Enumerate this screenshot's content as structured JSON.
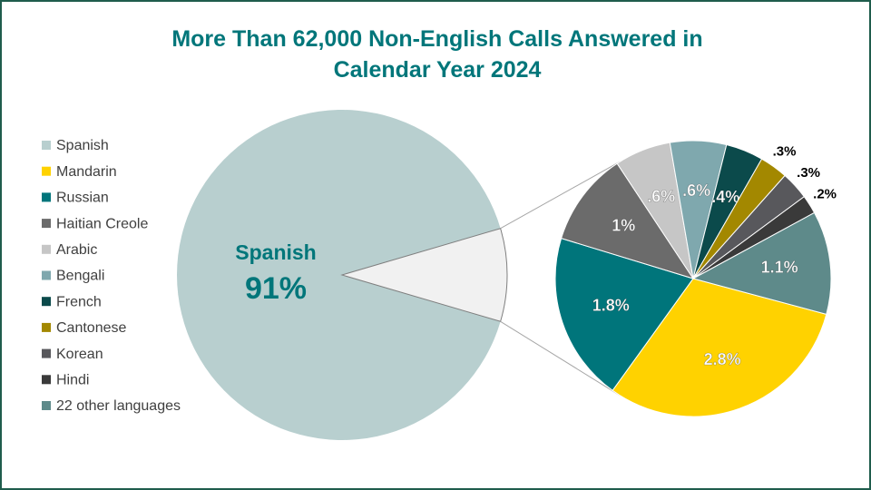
{
  "chart_data": {
    "type": "pie",
    "title": "More Than 62,000 Non-English Calls Answered in Calendar Year 2024",
    "categories": [
      "Spanish",
      "Mandarin",
      "Russian",
      "Haitian Creole",
      "Arabic",
      "Bengali",
      "French",
      "Cantonese",
      "Korean",
      "Hindi",
      "22 other languages"
    ],
    "values": [
      91,
      2.8,
      1.8,
      1,
      0.6,
      0.6,
      0.4,
      0.3,
      0.3,
      0.2,
      1.1
    ],
    "value_labels": [
      "91%",
      "2.8%",
      "1.8%",
      "1%",
      ".6%",
      ".6%",
      ".4%",
      ".3%",
      ".3%",
      ".2%",
      "1.1%"
    ],
    "colors": [
      "#b8cfcf",
      "#ffd200",
      "#00757b",
      "#6b6b6b",
      "#c6c6c6",
      "#7fa8ae",
      "#0b4a4b",
      "#a38800",
      "#58585c",
      "#3a3a3a",
      "#5e8a8a"
    ],
    "legend": "left"
  }
}
